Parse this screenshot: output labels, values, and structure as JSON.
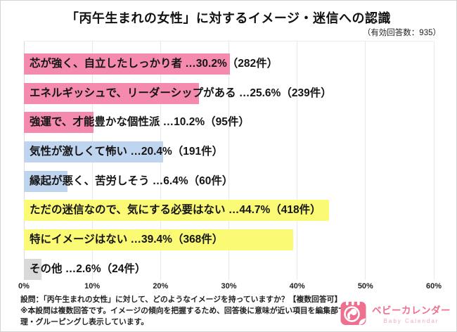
{
  "page": {
    "title": "「丙午生まれの女性」に対するイメージ・迷信への認識",
    "subtitle": "（有効回答数：935）"
  },
  "chart_data": {
    "type": "bar",
    "orientation": "horizontal",
    "title": "「丙午生まれの女性」に対するイメージ・迷信への認識",
    "valid_responses": 935,
    "xlim": [
      0,
      60
    ],
    "x_ticks": [
      "0%",
      "10%",
      "20%",
      "30%",
      "40%",
      "50%",
      "60%"
    ],
    "grid": true,
    "legend": "none",
    "colors": {
      "pink": "#F48AAE",
      "blue": "#BFD4EF",
      "yellow": "#FBFA75",
      "gray": "#D9D9D9"
    },
    "categories": [
      "芯が強く、自立したしっかり者",
      "エネルギッシュで、リーダーシップがある",
      "強運で、才能豊かな個性派",
      "気性が激しくて怖い",
      "縁起が悪く、苦労しそう",
      "ただの迷信なので、気にする必要はない",
      "特にイメージはない",
      "その他"
    ],
    "values": [
      30.2,
      25.6,
      10.2,
      20.4,
      6.4,
      44.7,
      39.4,
      2.6
    ],
    "counts": [
      282,
      239,
      95,
      191,
      60,
      418,
      368,
      24
    ],
    "bars": [
      {
        "label": "芯が強く、自立したしっかり者",
        "pct": 30.2,
        "count": 282,
        "color": "pink",
        "caption": "芯が強く、自立したしっかり者 …30.2%（282件）"
      },
      {
        "label": "エネルギッシュで、リーダーシップがある",
        "pct": 25.6,
        "count": 239,
        "color": "pink",
        "caption": "エネルギッシュで、リーダーシップがある …25.6%（239件）"
      },
      {
        "label": "強運で、才能豊かな個性派",
        "pct": 10.2,
        "count": 95,
        "color": "pink",
        "caption": "強運で、才能豊かな個性派 …10.2%（95件）"
      },
      {
        "label": "気性が激しくて怖い",
        "pct": 20.4,
        "count": 191,
        "color": "blue",
        "caption": "気性が激しくて怖い …20.4%（191件）"
      },
      {
        "label": "縁起が悪く、苦労しそう",
        "pct": 6.4,
        "count": 60,
        "color": "blue",
        "caption": "縁起が悪く、苦労しそう …6.4%（60件）"
      },
      {
        "label": "ただの迷信なので、気にする必要はない",
        "pct": 44.7,
        "count": 418,
        "color": "yellow",
        "caption": "ただの迷信なので、気にする必要はない …44.7%（418件）"
      },
      {
        "label": "特にイメージはない",
        "pct": 39.4,
        "count": 368,
        "color": "yellow",
        "caption": "特にイメージはない …39.4%（368件）"
      },
      {
        "label": "その他",
        "pct": 2.6,
        "count": 24,
        "color": "gray",
        "caption": "その他 …2.6%（24件）"
      }
    ]
  },
  "footer": {
    "question": "設問：「丙午生まれの女性」に対して、どのようなイメージを持っていますか？【複数回答可】",
    "note": "※本設問は複数回答です。イメージの傾向を把握するため、回答後に意味が近い項目を編集部で整理・グルーピングし表示しています。"
  },
  "logo": {
    "name_jp": "ベビーカレンダー",
    "name_en": "Baby Calendar",
    "brand_color": "#EE6F8E"
  }
}
